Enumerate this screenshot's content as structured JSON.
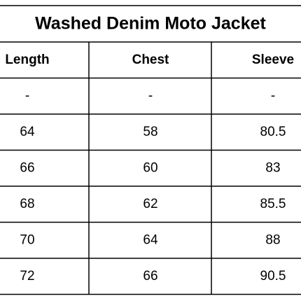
{
  "title": "Washed Denim Moto Jacket",
  "table": {
    "columns": [
      "Length",
      "Chest",
      "Sleeve"
    ],
    "rows": [
      [
        "-",
        "-",
        "-"
      ],
      [
        64,
        58,
        80.5
      ],
      [
        66,
        60,
        83
      ],
      [
        68,
        62,
        85.5
      ],
      [
        70,
        64,
        88
      ],
      [
        72,
        66,
        90.5
      ]
    ]
  }
}
